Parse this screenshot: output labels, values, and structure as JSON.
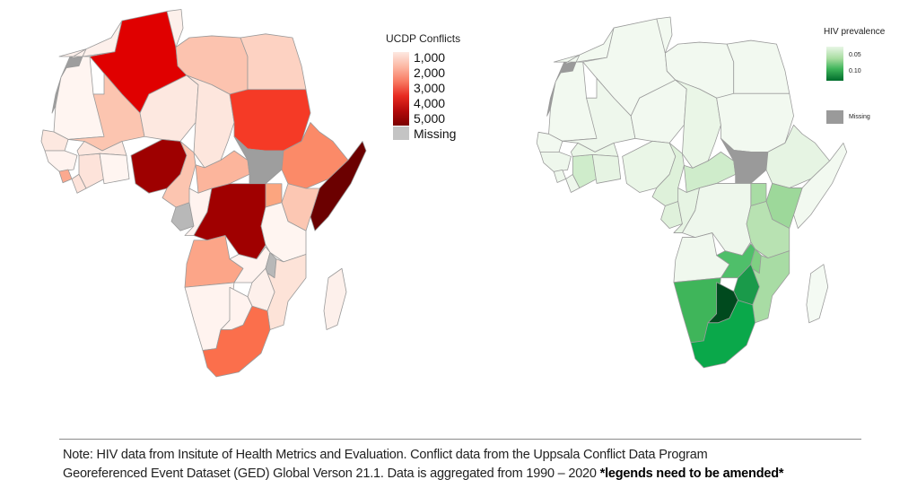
{
  "conflict_map": {
    "legend": {
      "title": "UCDP Conflicts",
      "labels": [
        "1,000",
        "2,000",
        "3,000",
        "4,000",
        "5,000",
        "Missing"
      ],
      "colors": {
        "low": "#fde8e2",
        "mid": "#f87a62",
        "high": "#7a0000",
        "missing": "#c4c4c4"
      }
    },
    "regions": [
      {
        "name": "western-sahara",
        "color": "#9e9e9e"
      },
      {
        "name": "morocco",
        "color": "#fdf0eb"
      },
      {
        "name": "algeria",
        "color": "#e00000"
      },
      {
        "name": "tunisia",
        "color": "#fdf0eb"
      },
      {
        "name": "libya",
        "color": "#fcc3af"
      },
      {
        "name": "egypt",
        "color": "#fdd2c2"
      },
      {
        "name": "mauritania",
        "color": "#fff5f1"
      },
      {
        "name": "mali",
        "color": "#fcc5b0"
      },
      {
        "name": "niger",
        "color": "#fde8e0"
      },
      {
        "name": "chad",
        "color": "#fde6dd"
      },
      {
        "name": "sudan",
        "color": "#f53a26"
      },
      {
        "name": "senegal",
        "color": "#fde8e0"
      },
      {
        "name": "guinea",
        "color": "#fff3ef"
      },
      {
        "name": "sierra-leone",
        "color": "#fca98f"
      },
      {
        "name": "liberia",
        "color": "#fde3da"
      },
      {
        "name": "cote-divoire",
        "color": "#fde3da"
      },
      {
        "name": "burkina-faso",
        "color": "#fde8e0"
      },
      {
        "name": "ghana",
        "color": "#fff5f1"
      },
      {
        "name": "nigeria",
        "color": "#9e0000"
      },
      {
        "name": "cameroon",
        "color": "#fcc5b0"
      },
      {
        "name": "central-african-republic",
        "color": "#fcb59c"
      },
      {
        "name": "south-sudan",
        "color": "#9e9e9e"
      },
      {
        "name": "ethiopia",
        "color": "#fb8a68"
      },
      {
        "name": "somalia",
        "color": "#6b0000"
      },
      {
        "name": "kenya",
        "color": "#fcc7b3"
      },
      {
        "name": "uganda",
        "color": "#fca57f"
      },
      {
        "name": "gabon",
        "color": "#b8b8b8"
      },
      {
        "name": "congo",
        "color": "#fff3ef"
      },
      {
        "name": "drc",
        "color": "#a00000"
      },
      {
        "name": "tanzania",
        "color": "#fff5f1"
      },
      {
        "name": "angola",
        "color": "#fca588"
      },
      {
        "name": "zambia",
        "color": "#fff3ef"
      },
      {
        "name": "malawi",
        "color": "#b8b8b8"
      },
      {
        "name": "mozambique",
        "color": "#fde3d8"
      },
      {
        "name": "zimbabwe",
        "color": "#fdf0eb"
      },
      {
        "name": "namibia",
        "color": "#fff3ef"
      },
      {
        "name": "botswana",
        "color": "#fff3ef"
      },
      {
        "name": "south-africa",
        "color": "#fb6f4c"
      },
      {
        "name": "madagascar",
        "color": "#fdf0eb"
      }
    ]
  },
  "hiv_map": {
    "legend": {
      "title": "HIV prevalence",
      "labels": [
        "0.05",
        "0.10"
      ],
      "missing_label": "Missing",
      "colors": {
        "low": "#e8f6e6",
        "high": "#006d2c",
        "missing": "#9a9a9a"
      }
    },
    "regions": [
      {
        "name": "western-sahara",
        "color": "#9a9a9a"
      },
      {
        "name": "morocco",
        "color": "#f2f9f0"
      },
      {
        "name": "algeria",
        "color": "#f2f9f0"
      },
      {
        "name": "tunisia",
        "color": "#f2f9f0"
      },
      {
        "name": "libya",
        "color": "#f2f9f0"
      },
      {
        "name": "egypt",
        "color": "#f2f9f0"
      },
      {
        "name": "mauritania",
        "color": "#f2f9f0"
      },
      {
        "name": "mali",
        "color": "#eef7ec"
      },
      {
        "name": "niger",
        "color": "#f2f9f0"
      },
      {
        "name": "chad",
        "color": "#eaf6e7"
      },
      {
        "name": "sudan",
        "color": "#f2f9f0"
      },
      {
        "name": "senegal",
        "color": "#f2f9f0"
      },
      {
        "name": "guinea",
        "color": "#eef7ec"
      },
      {
        "name": "sierra-leone",
        "color": "#eef7ec"
      },
      {
        "name": "liberia",
        "color": "#eef7ec"
      },
      {
        "name": "cote-divoire",
        "color": "#cfeccb"
      },
      {
        "name": "burkina-faso",
        "color": "#eaf6e7"
      },
      {
        "name": "ghana",
        "color": "#e6f4e3"
      },
      {
        "name": "nigeria",
        "color": "#eaf6e7"
      },
      {
        "name": "cameroon",
        "color": "#def1da"
      },
      {
        "name": "central-african-republic",
        "color": "#cfeccb"
      },
      {
        "name": "south-sudan",
        "color": "#9a9a9a"
      },
      {
        "name": "ethiopia",
        "color": "#e6f4e3"
      },
      {
        "name": "somalia",
        "color": "#f2f9f0"
      },
      {
        "name": "kenya",
        "color": "#9dd89a"
      },
      {
        "name": "uganda",
        "color": "#a8dca4"
      },
      {
        "name": "gabon",
        "color": "#dff1db"
      },
      {
        "name": "congo",
        "color": "#e6f4e3"
      },
      {
        "name": "drc",
        "color": "#eef7ec"
      },
      {
        "name": "tanzania",
        "color": "#b8e2b2"
      },
      {
        "name": "angola",
        "color": "#f0f8ee"
      },
      {
        "name": "zambia",
        "color": "#4fbf6a"
      },
      {
        "name": "malawi",
        "color": "#7fcf82"
      },
      {
        "name": "mozambique",
        "color": "#a8dca4"
      },
      {
        "name": "zimbabwe",
        "color": "#1a9a4a"
      },
      {
        "name": "namibia",
        "color": "#3fb55a"
      },
      {
        "name": "botswana",
        "color": "#004a1e"
      },
      {
        "name": "south-africa",
        "color": "#0aa84a"
      },
      {
        "name": "madagascar",
        "color": "#f4faf3"
      }
    ]
  },
  "footer": {
    "note_line1": "Note: HIV data from Insitute of Health Metrics and Evaluation. Conflict data from the Uppsala Conflict Data Program",
    "note_line2": "Georeferenced Event Dataset (GED) Global Verson 21.1. Data is aggregated from 1990 – 2020 ",
    "note_emphasis": "*legends need to be amended*"
  }
}
